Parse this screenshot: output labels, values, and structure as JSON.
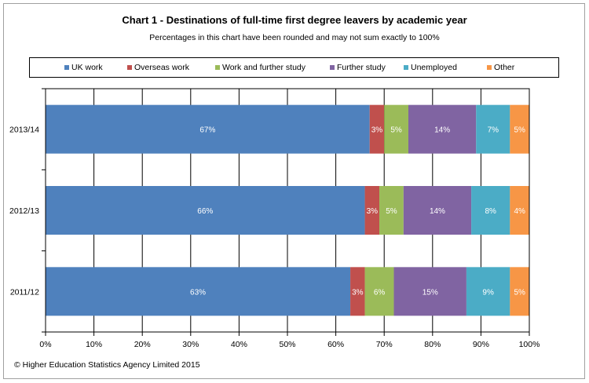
{
  "chart_data": {
    "type": "bar",
    "orientation": "horizontal",
    "stacked": true,
    "title": "Chart 1 - Destinations  of full-time first  degree leavers by  academic year",
    "subtitle": "Percentages in this chart have been rounded and may not sum exactly to 100%",
    "categories": [
      "2013/14",
      "2012/13",
      "2011/12"
    ],
    "series": [
      {
        "name": "UK work",
        "color": "#4F81BD",
        "values": [
          67,
          66,
          63
        ],
        "labels": [
          "67%",
          "66%",
          "63%"
        ]
      },
      {
        "name": "Overseas work",
        "color": "#C0504D",
        "values": [
          3,
          3,
          3
        ],
        "labels": [
          "3%",
          "3%",
          "3%"
        ]
      },
      {
        "name": "Work and further study",
        "color": "#9BBB59",
        "values": [
          5,
          5,
          6
        ],
        "labels": [
          "5%",
          "5%",
          "6%"
        ]
      },
      {
        "name": "Further study",
        "color": "#8064A2",
        "values": [
          14,
          14,
          15
        ],
        "labels": [
          "14%",
          "14%",
          "15%"
        ]
      },
      {
        "name": "Unemployed",
        "color": "#4BACC6",
        "values": [
          7,
          8,
          9
        ],
        "labels": [
          "7%",
          "8%",
          "9%"
        ]
      },
      {
        "name": "Other",
        "color": "#F79646",
        "values": [
          5,
          4,
          5
        ],
        "labels": [
          "5%",
          "4%",
          "5%"
        ]
      }
    ],
    "xlim": [
      0,
      100
    ],
    "xticks": [
      "0%",
      "10%",
      "20%",
      "30%",
      "40%",
      "50%",
      "60%",
      "70%",
      "80%",
      "90%",
      "100%"
    ],
    "grid": true,
    "legend": "top"
  },
  "footer": "© Higher Education Statistics Agency Limited 2015"
}
